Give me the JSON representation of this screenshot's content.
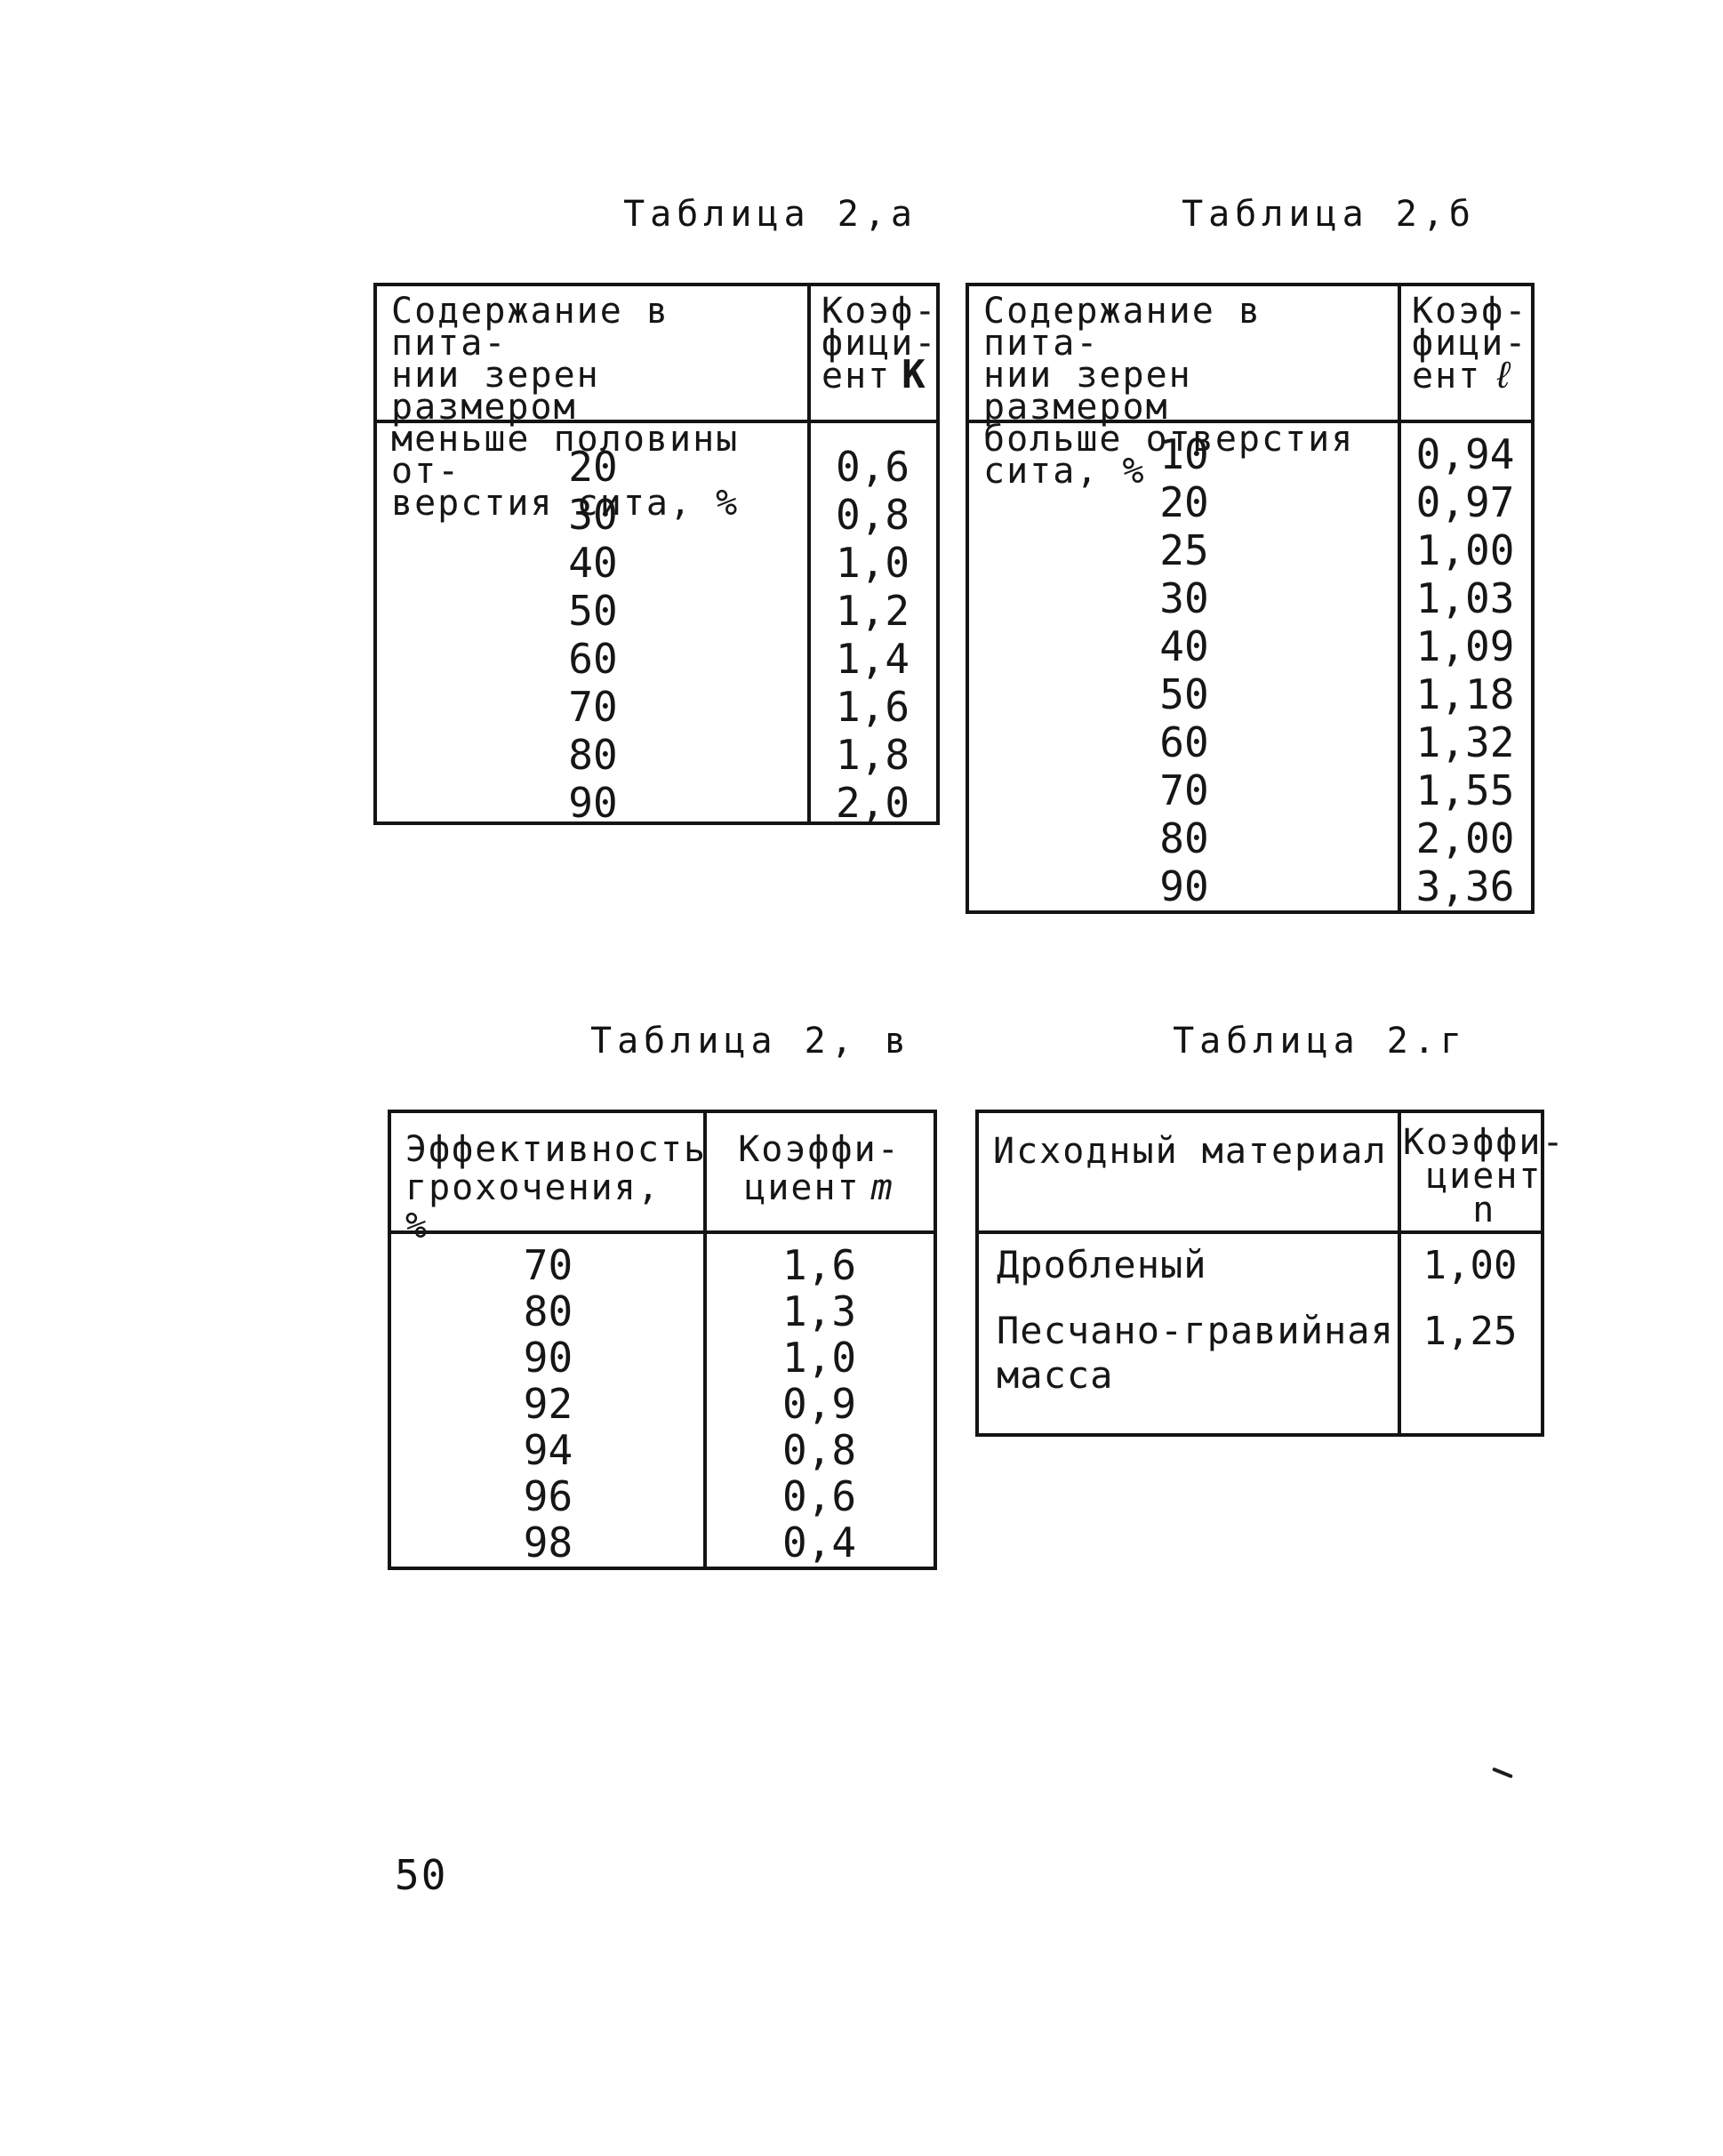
{
  "page": {
    "number": "50"
  },
  "tables": {
    "t2a": {
      "title": "Таблица 2,а",
      "col1_header": "Содержание в пита-\nнии зерен размером\nменьше половины от-\nверстия сита, %",
      "col2_header": "Коэф-\nфици-\nент",
      "col2_symbol": "К",
      "rows": [
        [
          "20",
          "0,6"
        ],
        [
          "30",
          "0,8"
        ],
        [
          "40",
          "1,0"
        ],
        [
          "50",
          "1,2"
        ],
        [
          "60",
          "1,4"
        ],
        [
          "70",
          "1,6"
        ],
        [
          "80",
          "1,8"
        ],
        [
          "90",
          "2,0"
        ]
      ]
    },
    "t2b": {
      "title": "Таблица 2,б",
      "col1_header": "Содержание в пита-\nнии зерен размером\nбольше отверстия\nсита, %",
      "col2_header": "Коэф-\nфици-\nент",
      "col2_symbol": "ℓ",
      "rows": [
        [
          "10",
          "0,94"
        ],
        [
          "20",
          "0,97"
        ],
        [
          "25",
          "1,00"
        ],
        [
          "30",
          "1,03"
        ],
        [
          "40",
          "1,09"
        ],
        [
          "50",
          "1,18"
        ],
        [
          "60",
          "1,32"
        ],
        [
          "70",
          "1,55"
        ],
        [
          "80",
          "2,00"
        ],
        [
          "90",
          "3,36"
        ]
      ]
    },
    "t2v": {
      "title": "Таблица 2, в",
      "col1_header": "Эффективность\nгрохочения, %",
      "col2_header": "Коэффи-\nциент",
      "col2_symbol": "m",
      "rows": [
        [
          "70",
          "1,6"
        ],
        [
          "80",
          "1,3"
        ],
        [
          "90",
          "1,0"
        ],
        [
          "92",
          "0,9"
        ],
        [
          "94",
          "0,8"
        ],
        [
          "96",
          "0,6"
        ],
        [
          "98",
          "0,4"
        ]
      ]
    },
    "t2g": {
      "title": "Таблица 2.г",
      "col1_header": "Исходный материал",
      "col2_header": "Коэффи-\nциент",
      "col2_symbol": "n",
      "rows": [
        [
          "Дробленый",
          "1,00"
        ],
        [
          "Песчано-гравийная\nмасса",
          "1,25"
        ]
      ]
    }
  }
}
